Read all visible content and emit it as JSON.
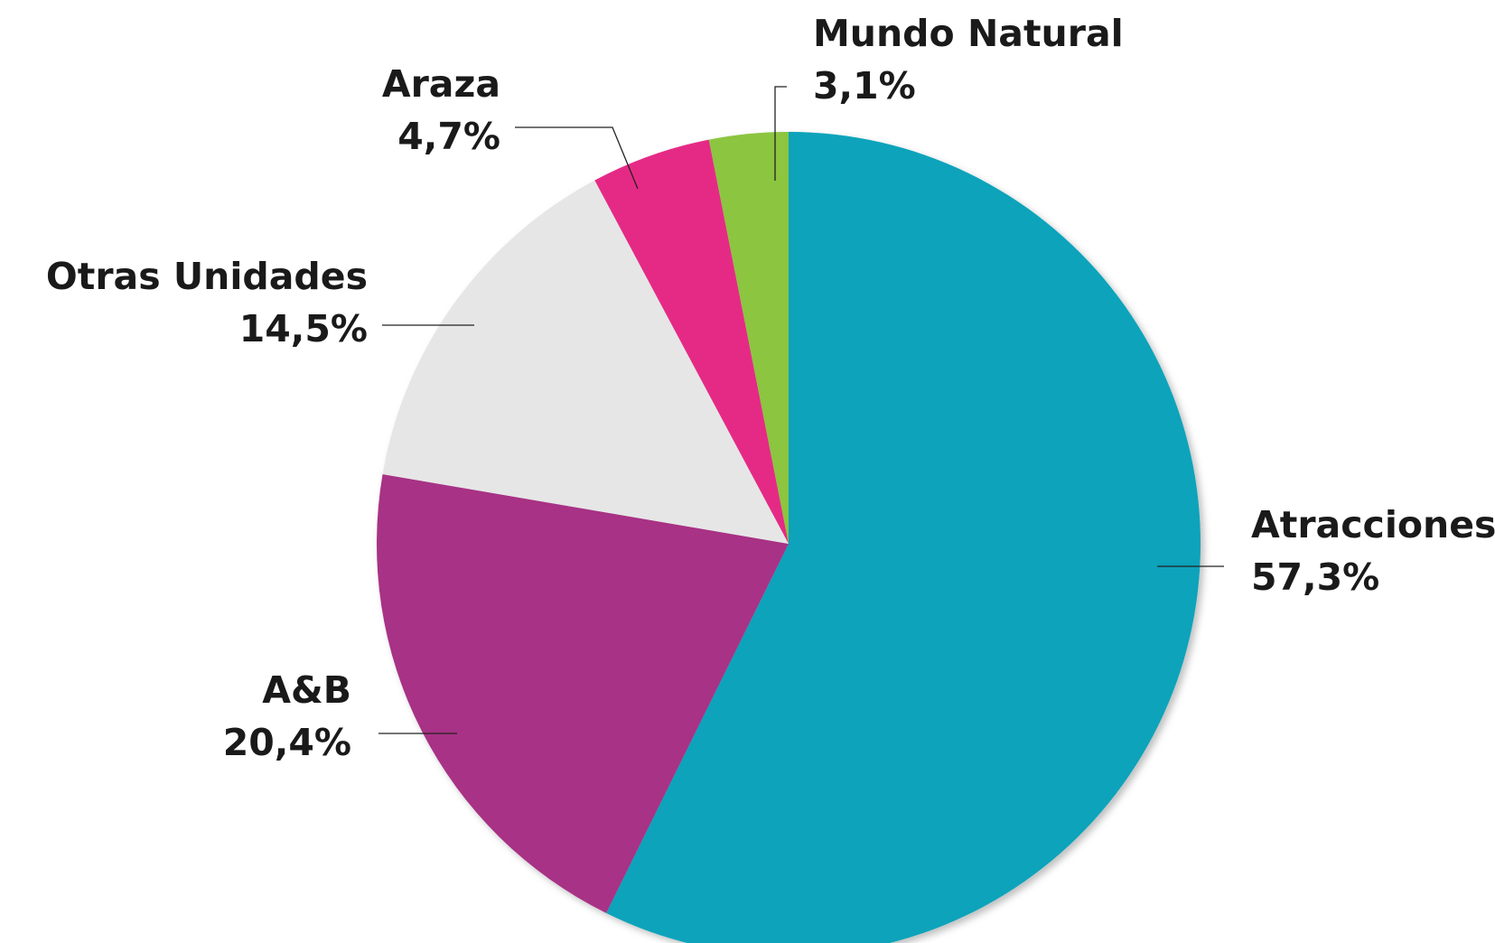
{
  "chart_data": {
    "type": "pie",
    "categories": [
      "Atracciones",
      "A&B",
      "Otras Unidades",
      "Araza",
      "Mundo Natural"
    ],
    "values": [
      57.3,
      20.4,
      14.5,
      4.7,
      3.1
    ],
    "value_labels": [
      "57,3%",
      "20,4%",
      "14,5%",
      "4,7%",
      "3,1%"
    ],
    "colors": [
      "#07a3bb",
      "#a83285",
      "#e6e6e6",
      "#e52b86",
      "#8cc540"
    ]
  }
}
